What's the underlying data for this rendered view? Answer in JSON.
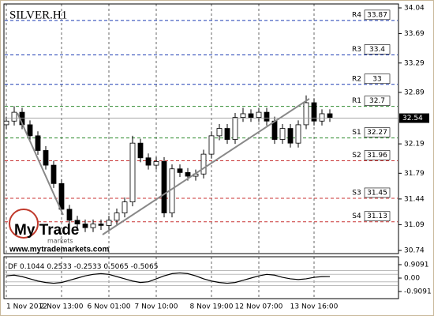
{
  "chart_data": [
    {
      "type": "candlestick",
      "title": "SILVER.H1",
      "categories": [
        "1 Nov 2012",
        null,
        null,
        null,
        null,
        null,
        null,
        "2 Nov 13:00",
        null,
        null,
        null,
        null,
        null,
        "6 Nov 01:00",
        null,
        null,
        null,
        null,
        null,
        "7 Nov 10:00",
        null,
        null,
        null,
        null,
        null,
        null,
        "8 Nov 19:00",
        null,
        null,
        null,
        null,
        null,
        "12 Nov 07:00",
        null,
        null,
        null,
        null,
        null,
        null,
        "13 Nov 16:00",
        null,
        null
      ],
      "open": [
        32.45,
        32.5,
        32.62,
        32.45,
        32.3,
        32.1,
        31.9,
        31.65,
        31.3,
        31.15,
        31.1,
        31.05,
        31.1,
        31.08,
        31.15,
        31.25,
        31.4,
        32.2,
        32.0,
        31.9,
        31.95,
        31.25,
        31.85,
        31.8,
        31.75,
        31.78,
        32.05,
        32.3,
        32.4,
        32.25,
        32.55,
        32.6,
        32.55,
        32.62,
        32.5,
        32.25,
        32.4,
        32.2,
        32.45,
        32.75,
        32.5,
        32.6
      ],
      "high": [
        32.56,
        32.7,
        32.68,
        32.51,
        32.36,
        32.16,
        31.96,
        31.71,
        31.36,
        31.21,
        31.16,
        31.16,
        31.16,
        31.21,
        31.31,
        31.46,
        32.3,
        32.26,
        32.06,
        32.01,
        32.01,
        31.91,
        31.91,
        31.86,
        31.84,
        32.11,
        32.36,
        32.46,
        32.46,
        32.61,
        32.68,
        32.66,
        32.68,
        32.68,
        32.56,
        32.46,
        32.46,
        32.51,
        32.85,
        32.81,
        32.66,
        32.66
      ],
      "low": [
        32.39,
        32.44,
        32.39,
        32.24,
        32.04,
        31.84,
        31.59,
        31.24,
        31.09,
        31.04,
        30.99,
        30.99,
        31.02,
        31.02,
        31.09,
        31.19,
        31.34,
        31.94,
        31.84,
        31.84,
        31.19,
        31.19,
        31.74,
        31.69,
        31.69,
        31.72,
        31.99,
        32.24,
        32.19,
        32.19,
        32.49,
        32.49,
        32.49,
        32.44,
        32.19,
        32.19,
        32.14,
        32.14,
        32.39,
        32.44,
        32.44,
        32.49
      ],
      "close": [
        32.5,
        32.62,
        32.45,
        32.3,
        32.1,
        31.9,
        31.65,
        31.3,
        31.15,
        31.1,
        31.05,
        31.1,
        31.08,
        31.15,
        31.25,
        31.4,
        32.2,
        32.0,
        31.9,
        31.95,
        31.25,
        31.85,
        31.8,
        31.75,
        31.78,
        32.05,
        32.3,
        32.4,
        32.25,
        32.55,
        32.6,
        32.55,
        32.62,
        32.5,
        32.25,
        32.4,
        32.2,
        32.45,
        32.75,
        32.5,
        32.6,
        32.55
      ],
      "ylim": [
        30.74,
        34.04
      ],
      "yticks": [
        34.04,
        33.69,
        33.29,
        32.89,
        32.19,
        31.79,
        31.44,
        31.09,
        30.74
      ],
      "current_price": 32.54,
      "grid": "x",
      "levels": [
        {
          "name": "R4",
          "value": 33.87,
          "color": "#1e3cb4"
        },
        {
          "name": "R3",
          "value": 33.4,
          "color": "#1e3cb4"
        },
        {
          "name": "R2",
          "value": 33.0,
          "color": "#1e3cb4"
        },
        {
          "name": "R1",
          "value": 32.7,
          "color": "#2e8b2e"
        },
        {
          "name": "S1",
          "value": 32.27,
          "color": "#2e8b2e"
        },
        {
          "name": "S2",
          "value": 31.96,
          "color": "#c83232"
        },
        {
          "name": "S3",
          "value": 31.45,
          "color": "#c83232"
        },
        {
          "name": "S4",
          "value": 31.13,
          "color": "#c83232"
        }
      ],
      "watermark": {
        "brand": "My Trade",
        "sub": "markets",
        "url": "www.mytrademarkets.com"
      }
    },
    {
      "type": "line",
      "name": "DF",
      "current": 0.1044,
      "bands": [
        0.2533,
        -0.2533,
        0.5065,
        -0.5065
      ],
      "values": [
        0.15,
        0.2,
        0.1,
        -0.05,
        -0.2,
        -0.3,
        -0.35,
        -0.3,
        -0.15,
        0.0,
        0.15,
        0.25,
        0.3,
        0.25,
        0.1,
        -0.05,
        -0.2,
        -0.3,
        -0.25,
        -0.05,
        0.15,
        0.3,
        0.35,
        0.3,
        0.15,
        -0.05,
        -0.2,
        -0.3,
        -0.35,
        -0.3,
        -0.15,
        0.0,
        0.15,
        0.25,
        0.2,
        0.05,
        -0.05,
        -0.1,
        -0.05,
        0.05,
        0.1,
        0.1044
      ],
      "color": "#000000",
      "ylim": [
        -0.9091,
        0.9091
      ],
      "yticks": [
        0.9091,
        {
          "value": 0,
          "label": "0.00"
        },
        -0.9091
      ]
    }
  ]
}
